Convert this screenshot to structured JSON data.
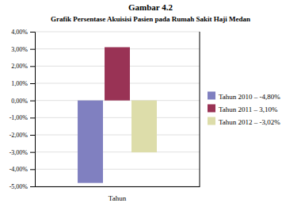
{
  "chart_data": {
    "type": "bar",
    "title": "Gambar 4.2",
    "subtitle": "Grafik Persentase Akuisisi Pasien pada Rumah Sakit Haji Medan",
    "xlabel": "Tahun",
    "categories": [
      null
    ],
    "series": [
      {
        "name": "Tahun 2010 – -4,80%",
        "color": "#8080c0",
        "values": [
          -4.8
        ]
      },
      {
        "name": "Tahun 2011 – 3,10%",
        "color": "#993355",
        "values": [
          3.1
        ]
      },
      {
        "name": "Tahun 2012 – -3,02%",
        "color": "#ddddaa",
        "values": [
          -3.02
        ]
      }
    ],
    "ylim": [
      -5.0,
      4.0
    ],
    "yticks": [
      {
        "value": -5.0,
        "label": "-5,00%"
      },
      {
        "value": -4.0,
        "label": "-4,00%"
      },
      {
        "value": -3.0,
        "label": "-3,00%"
      },
      {
        "value": -2.0,
        "label": "-2,00%"
      },
      {
        "value": -1.0,
        "label": "-1,00%"
      },
      {
        "value": 0.0,
        "label": "0,00%"
      },
      {
        "value": 1.0,
        "label": "1,00%"
      },
      {
        "value": 2.0,
        "label": "2,00%"
      },
      {
        "value": 3.0,
        "label": "3,00%"
      },
      {
        "value": 4.0,
        "label": "4,00%"
      }
    ],
    "grid": true,
    "legend": "right",
    "tick_labels": "y"
  }
}
